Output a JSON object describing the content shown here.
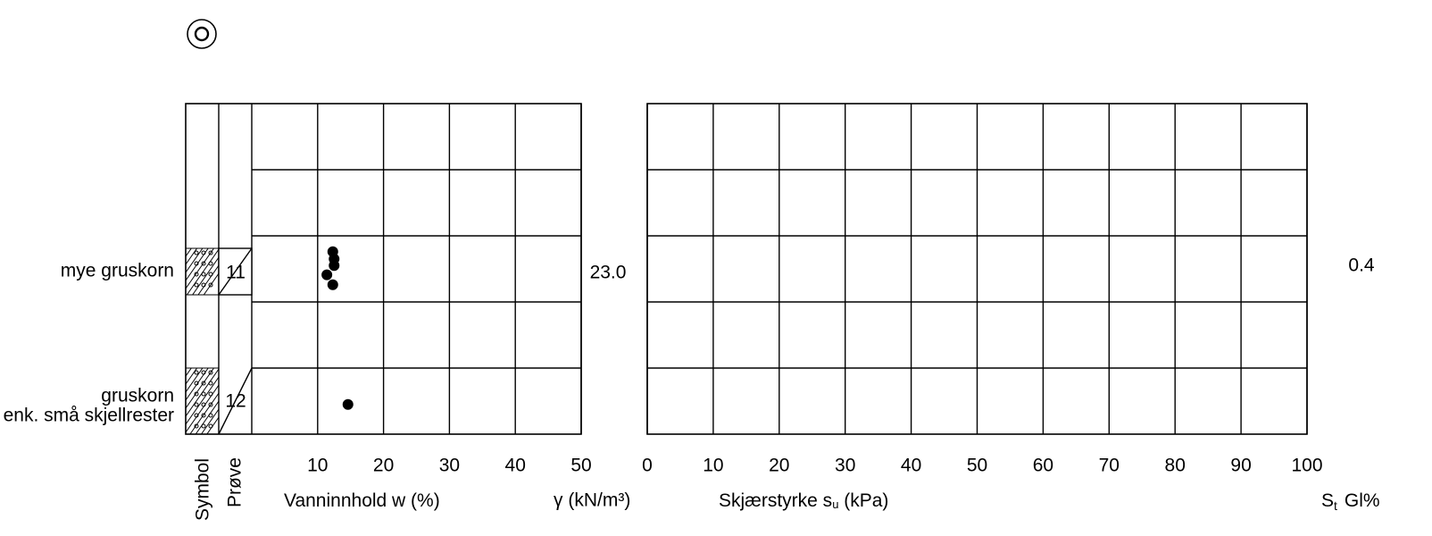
{
  "column_labels": {
    "symbol": "Symbol",
    "sample": "Prøve",
    "density": "γ (kN/m³)",
    "sensitivity": "S",
    "sensitivity_sub": "t",
    "clay": "Gl%"
  },
  "layers": [
    {
      "description": [
        "mye gruskorn"
      ],
      "sample": "11",
      "density": "23.0",
      "sensitivity": "0.4"
    },
    {
      "description": [
        "gruskorn",
        "enk. små skjellrester"
      ],
      "sample": "12"
    }
  ],
  "chart_data": [
    {
      "type": "scatter",
      "x_label": "Vanninnhold w (%)",
      "xlim": [
        0,
        50
      ],
      "xticks": [
        10,
        20,
        30,
        40,
        50
      ],
      "ylim": [
        0,
        5
      ],
      "yticks": [
        1,
        2,
        3,
        4
      ],
      "x": [
        12.3,
        12.5,
        12.5,
        11.4,
        12.3,
        14.6
      ],
      "y": [
        2.24,
        2.35,
        2.45,
        2.59,
        2.74,
        4.55
      ],
      "color": "#000000"
    },
    {
      "type": "scatter",
      "x_label": "Skjærstyrke s",
      "x_label_sub": "u",
      "x_label_unit": " (kPa)",
      "xlim": [
        0,
        100
      ],
      "xticks": [
        0,
        10,
        20,
        30,
        40,
        50,
        60,
        70,
        80,
        90,
        100
      ],
      "ylim": [
        0,
        5
      ],
      "yticks": [
        1,
        2,
        3,
        4
      ],
      "x": [],
      "y": [],
      "color": "#000000"
    }
  ]
}
